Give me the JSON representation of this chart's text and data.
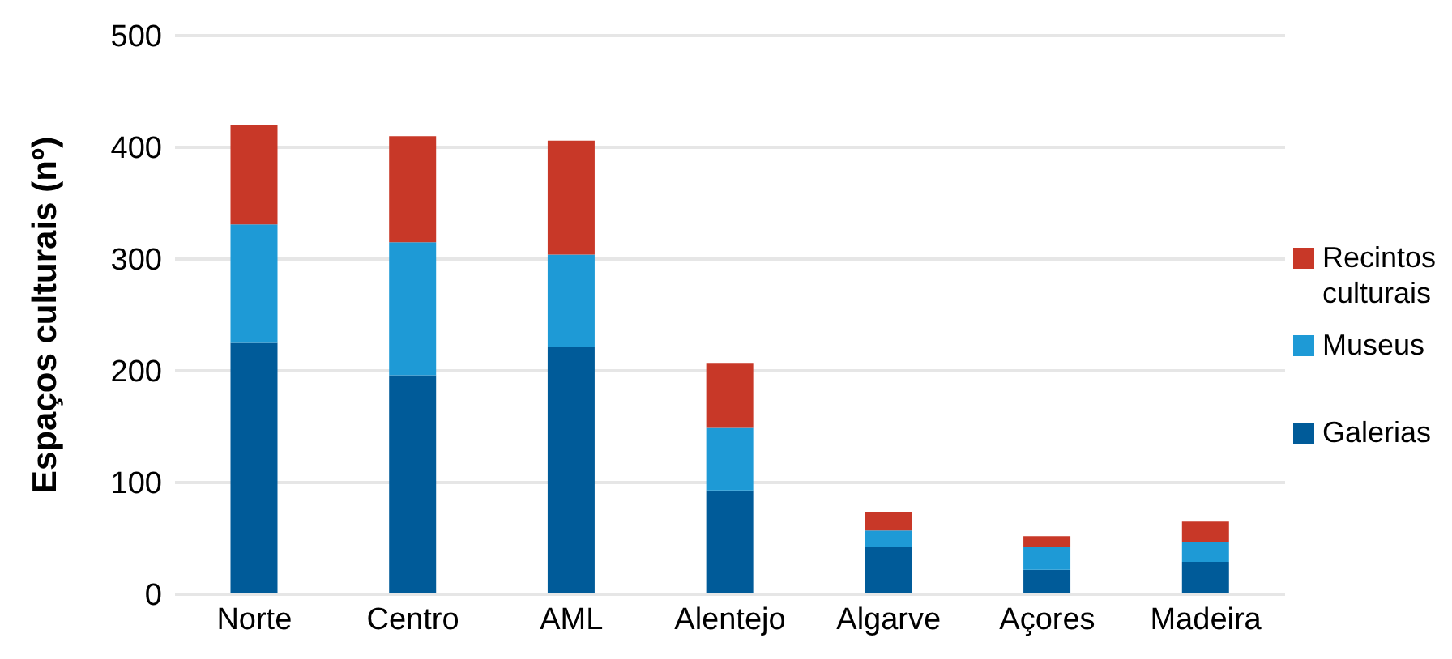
{
  "chart_data": {
    "type": "bar",
    "stacked": true,
    "ylabel": "Espaços culturais (nº)",
    "categories": [
      "Norte",
      "Centro",
      "AML",
      "Alentejo",
      "Algarve",
      "Açores",
      "Madeira"
    ],
    "series": [
      {
        "name": "Galerias",
        "color": "#005b99",
        "values": [
          225,
          196,
          221,
          93,
          42,
          22,
          29
        ]
      },
      {
        "name": "Museus",
        "color": "#1e9ad6",
        "values": [
          106,
          119,
          83,
          56,
          15,
          20,
          18
        ]
      },
      {
        "name": "Recintos culturais",
        "color": "#c83828",
        "values": [
          89,
          95,
          102,
          58,
          17,
          10,
          18
        ]
      }
    ],
    "ylim": [
      0,
      500
    ],
    "yticks": [
      0,
      100,
      200,
      300,
      400,
      500
    ],
    "grid": "y",
    "legend": "right"
  }
}
